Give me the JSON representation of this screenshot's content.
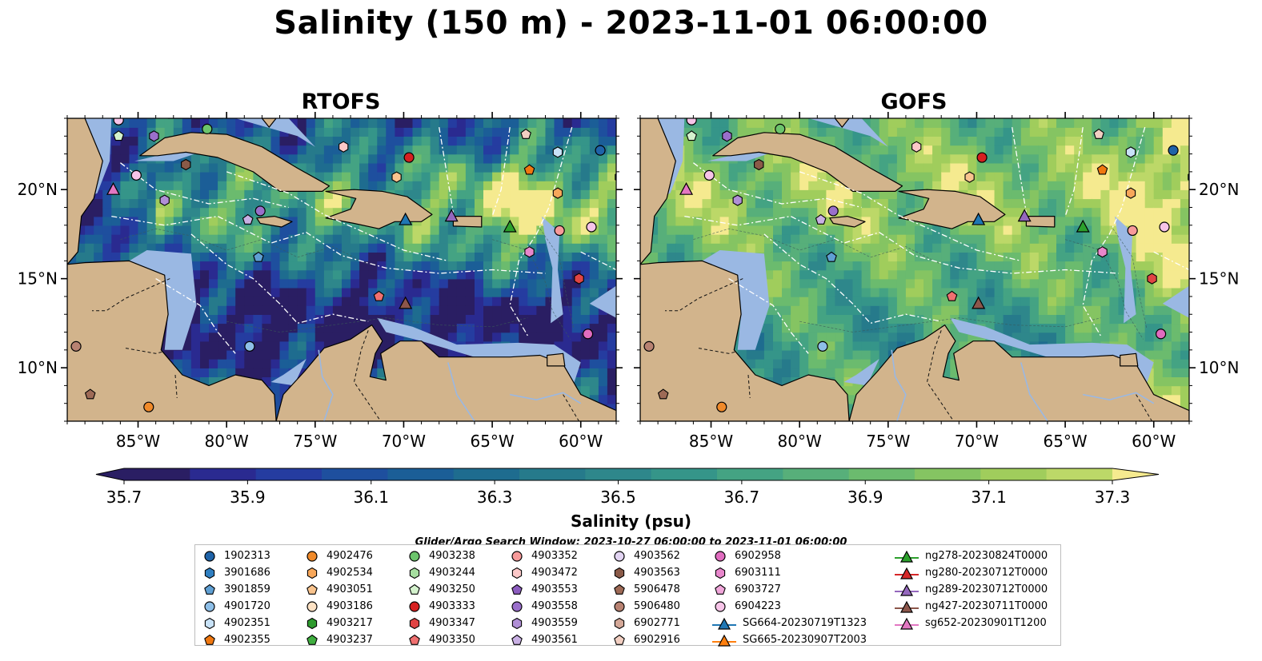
{
  "title": "Salinity (150 m) - 2023-11-01 06:00:00",
  "panels": [
    {
      "title": "RTOFS",
      "variant": "rtofs"
    },
    {
      "title": "GOFS",
      "variant": "gofs"
    }
  ],
  "map": {
    "lon_range": [
      -89,
      -58
    ],
    "lat_range": [
      7,
      24
    ],
    "lon_ticks": [
      {
        "value": -85,
        "label": "85°W"
      },
      {
        "value": -80,
        "label": "80°W"
      },
      {
        "value": -75,
        "label": "75°W"
      },
      {
        "value": -70,
        "label": "70°W"
      },
      {
        "value": -65,
        "label": "65°W"
      },
      {
        "value": -60,
        "label": "60°W"
      }
    ],
    "lat_ticks": [
      {
        "value": 10,
        "label": "10°N"
      },
      {
        "value": 15,
        "label": "15°N"
      },
      {
        "value": 20,
        "label": "20°N"
      }
    ],
    "colors": {
      "land": "#d2b48c",
      "shelf": "#9ab8e3",
      "deep_fill": "#2a1e63",
      "eez_line": "#ffffff",
      "coast": "#000000"
    }
  },
  "colorbar": {
    "label": "Salinity (psu)",
    "min": 35.7,
    "max": 37.3,
    "step": 0.1,
    "ticks": [
      "35.7",
      "35.9",
      "36.1",
      "36.3",
      "36.5",
      "36.7",
      "36.9",
      "37.1",
      "37.3"
    ],
    "colors": [
      "#2a1e63",
      "#2a2a90",
      "#253ca0",
      "#1e4f9e",
      "#1b5e97",
      "#1e6c8f",
      "#267a8b",
      "#2e878b",
      "#359589",
      "#44a383",
      "#57af7a",
      "#6bbb6e",
      "#85c462",
      "#a0cd5c",
      "#bcd868",
      "#f5ea8f"
    ]
  },
  "search_window": "Glider/Argo Search Window: 2023-10-27 06:00:00 to 2023-11-01 06:00:00",
  "legend": {
    "columns": [
      [
        {
          "label": "1902313",
          "marker": "circle",
          "color": "#1f63a8"
        },
        {
          "label": "3901686",
          "marker": "hexagon",
          "color": "#2f7fc1"
        },
        {
          "label": "3901859",
          "marker": "pentagon",
          "color": "#5f9fd3"
        },
        {
          "label": "4901720",
          "marker": "circle",
          "color": "#8ebfe8"
        },
        {
          "label": "4902351",
          "marker": "hexagon",
          "color": "#c8e2f7"
        },
        {
          "label": "4902355",
          "marker": "pentagon",
          "color": "#f07810"
        }
      ],
      [
        {
          "label": "4902476",
          "marker": "circle",
          "color": "#f08a2a"
        },
        {
          "label": "4902534",
          "marker": "hexagon",
          "color": "#f7a75a"
        },
        {
          "label": "4903051",
          "marker": "pentagon",
          "color": "#f9c48e"
        },
        {
          "label": "4903186",
          "marker": "circle",
          "color": "#fde2c4"
        },
        {
          "label": "4903217",
          "marker": "hexagon",
          "color": "#2e9a2e"
        },
        {
          "label": "4903237",
          "marker": "pentagon",
          "color": "#3fae3f"
        }
      ],
      [
        {
          "label": "4903238",
          "marker": "circle",
          "color": "#6cc46c"
        },
        {
          "label": "4903244",
          "marker": "hexagon",
          "color": "#a6dfa0"
        },
        {
          "label": "4903250",
          "marker": "pentagon",
          "color": "#d4f2cd"
        },
        {
          "label": "4903333",
          "marker": "circle",
          "color": "#d62020"
        },
        {
          "label": "4903347",
          "marker": "hexagon",
          "color": "#e04444"
        },
        {
          "label": "4903350",
          "marker": "pentagon",
          "color": "#f07070"
        }
      ],
      [
        {
          "label": "4903352",
          "marker": "circle",
          "color": "#f79a9a"
        },
        {
          "label": "4903472",
          "marker": "hexagon",
          "color": "#fcc8c8"
        },
        {
          "label": "4903553",
          "marker": "pentagon",
          "color": "#8c5cbf"
        },
        {
          "label": "4903558",
          "marker": "circle",
          "color": "#9a6fcb"
        },
        {
          "label": "4903559",
          "marker": "hexagon",
          "color": "#b08fd6"
        },
        {
          "label": "4903561",
          "marker": "pentagon",
          "color": "#c9b0e4"
        }
      ],
      [
        {
          "label": "4903562",
          "marker": "circle",
          "color": "#e2d4f2"
        },
        {
          "label": "4903563",
          "marker": "hexagon",
          "color": "#8a5a48"
        },
        {
          "label": "5906478",
          "marker": "pentagon",
          "color": "#9e6a56"
        },
        {
          "label": "5906480",
          "marker": "circle",
          "color": "#b88272"
        },
        {
          "label": "6902771",
          "marker": "hexagon",
          "color": "#d4a898"
        },
        {
          "label": "6902916",
          "marker": "pentagon",
          "color": "#f2cfc2"
        }
      ],
      [
        {
          "label": "6902958",
          "marker": "circle",
          "color": "#e06cbf"
        },
        {
          "label": "6903111",
          "marker": "hexagon",
          "color": "#e887cc"
        },
        {
          "label": "6903727",
          "marker": "pentagon",
          "color": "#f0a6da"
        },
        {
          "label": "6904223",
          "marker": "circle",
          "color": "#f7c4e8"
        },
        {
          "label": "SG664-20230719T1323",
          "marker": "triangle-line",
          "color": "#1f77b4"
        },
        {
          "label": "SG665-20230907T2003",
          "marker": "triangle-line",
          "color": "#ff7f0e"
        }
      ],
      [
        {
          "label": "ng278-20230824T0000",
          "marker": "triangle-line",
          "color": "#2ca02c"
        },
        {
          "label": "ng280-20230712T0000",
          "marker": "triangle-line",
          "color": "#d62728"
        },
        {
          "label": "ng289-20230712T0000",
          "marker": "triangle-line",
          "color": "#9467bd"
        },
        {
          "label": "ng427-20230711T0000",
          "marker": "triangle-line",
          "color": "#8c564b"
        },
        {
          "label": "sg652-20230901T1200",
          "marker": "triangle-line",
          "color": "#e377c2"
        }
      ]
    ]
  },
  "observations": [
    {
      "lon": -86.1,
      "lat": 23.0,
      "marker": "pentagon",
      "color": "#d4f2cd"
    },
    {
      "lon": -84.1,
      "lat": 23.0,
      "marker": "hexagon",
      "color": "#9a6fcb"
    },
    {
      "lon": -81.1,
      "lat": 23.4,
      "marker": "circle",
      "color": "#6cc46c"
    },
    {
      "lon": -86.1,
      "lat": 23.9,
      "marker": "circle",
      "color": "#f7c4e8"
    },
    {
      "lon": -82.3,
      "lat": 21.4,
      "marker": "hexagon",
      "color": "#8a5a48"
    },
    {
      "lon": -85.1,
      "lat": 20.8,
      "marker": "circle",
      "color": "#f7c4e8"
    },
    {
      "lon": -86.4,
      "lat": 20.0,
      "marker": "triangle",
      "color": "#e377c2"
    },
    {
      "lon": -83.5,
      "lat": 19.4,
      "marker": "hexagon",
      "color": "#b08fd6"
    },
    {
      "lon": -78.1,
      "lat": 18.8,
      "marker": "circle",
      "color": "#9a6fcb"
    },
    {
      "lon": -78.8,
      "lat": 18.3,
      "marker": "pentagon",
      "color": "#c9b0e4"
    },
    {
      "lon": -78.2,
      "lat": 16.2,
      "marker": "pentagon",
      "color": "#5f9fd3"
    },
    {
      "lon": -73.4,
      "lat": 22.4,
      "marker": "hexagon",
      "color": "#fcc8c8"
    },
    {
      "lon": -69.7,
      "lat": 21.8,
      "marker": "circle",
      "color": "#d62020"
    },
    {
      "lon": -70.4,
      "lat": 20.7,
      "marker": "hexagon",
      "color": "#f9c48e"
    },
    {
      "lon": -63.1,
      "lat": 23.1,
      "marker": "pentagon",
      "color": "#f2cfc2"
    },
    {
      "lon": -61.3,
      "lat": 22.1,
      "marker": "hexagon",
      "color": "#c8e2f7"
    },
    {
      "lon": -58.9,
      "lat": 22.2,
      "marker": "circle",
      "color": "#1f63a8"
    },
    {
      "lon": -57.8,
      "lat": 20.7,
      "marker": "hexagon",
      "color": "#2f7fc1"
    },
    {
      "lon": -62.9,
      "lat": 21.1,
      "marker": "pentagon",
      "color": "#f07810"
    },
    {
      "lon": -61.3,
      "lat": 19.8,
      "marker": "hexagon",
      "color": "#f7a75a"
    },
    {
      "lon": -69.9,
      "lat": 18.3,
      "marker": "triangle",
      "color": "#1f77b4"
    },
    {
      "lon": -67.3,
      "lat": 18.5,
      "marker": "triangle",
      "color": "#9467bd"
    },
    {
      "lon": -64.0,
      "lat": 17.9,
      "marker": "triangle",
      "color": "#2ca02c"
    },
    {
      "lon": -61.2,
      "lat": 17.7,
      "marker": "circle",
      "color": "#f79a9a"
    },
    {
      "lon": -59.4,
      "lat": 17.9,
      "marker": "circle",
      "color": "#f7c4e8"
    },
    {
      "lon": -62.9,
      "lat": 16.5,
      "marker": "hexagon",
      "color": "#e887cc"
    },
    {
      "lon": -60.1,
      "lat": 15.0,
      "marker": "hexagon",
      "color": "#e04444"
    },
    {
      "lon": -71.4,
      "lat": 14.0,
      "marker": "pentagon",
      "color": "#f07070"
    },
    {
      "lon": -69.9,
      "lat": 13.6,
      "marker": "triangle",
      "color": "#8c564b"
    },
    {
      "lon": -59.6,
      "lat": 11.9,
      "marker": "circle",
      "color": "#e06cbf"
    },
    {
      "lon": -78.7,
      "lat": 11.2,
      "marker": "circle",
      "color": "#8ebfe8"
    },
    {
      "lon": -88.5,
      "lat": 11.2,
      "marker": "circle",
      "color": "#b88272"
    },
    {
      "lon": -87.7,
      "lat": 8.5,
      "marker": "pentagon",
      "color": "#9e6a56"
    },
    {
      "lon": -84.4,
      "lat": 7.8,
      "marker": "circle",
      "color": "#f08a2a"
    }
  ]
}
